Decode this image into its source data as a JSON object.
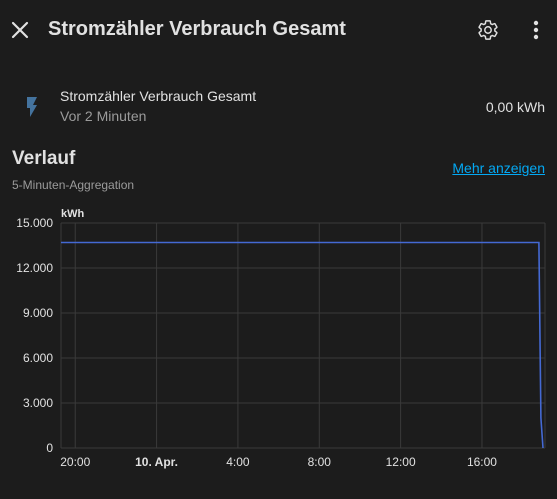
{
  "header": {
    "close_icon": "close-icon",
    "title": "Stromzähler Verbrauch Gesamt",
    "settings_icon": "gear-icon",
    "more_icon": "more-vertical-icon"
  },
  "entity": {
    "icon": "flash-icon",
    "icon_color": "#44739e",
    "name": "Stromzähler Verbrauch Gesamt",
    "last_changed": "Vor 2 Minuten",
    "state": "0,00 kWh"
  },
  "history": {
    "title": "Verlauf",
    "subtitle": "5-Minuten-Aggregation",
    "more_link": "Mehr anzeigen"
  },
  "colors": {
    "background": "#1c1c1c",
    "text": "#e1e1e1",
    "secondary_text": "#9b9b9b",
    "link": "#03a9f4",
    "line": "#4469d3",
    "grid": "#3a3a3a"
  },
  "chart_data": {
    "type": "line",
    "ylabel": "kWh",
    "ylim": [
      0,
      15000
    ],
    "y_ticks": [
      "15.000",
      "12.000",
      "9.000",
      "6.000",
      "3.000",
      "0"
    ],
    "y_tick_values": [
      15000,
      12000,
      9000,
      6000,
      3000,
      0
    ],
    "x_ticks": [
      "20:00",
      "10. Apr.",
      "4:00",
      "8:00",
      "12:00",
      "16:00"
    ],
    "x_ticks_bold": [
      false,
      true,
      false,
      false,
      false,
      false
    ],
    "x_tick_hours": [
      0,
      4,
      8,
      12,
      16,
      20
    ],
    "x_range_hours": [
      -0.7,
      23.1
    ],
    "grid": true,
    "series": [
      {
        "points": [
          [
            -0.7,
            13700
          ],
          [
            22.8,
            13700
          ],
          [
            22.9,
            2000
          ],
          [
            23.0,
            0
          ]
        ]
      }
    ]
  }
}
